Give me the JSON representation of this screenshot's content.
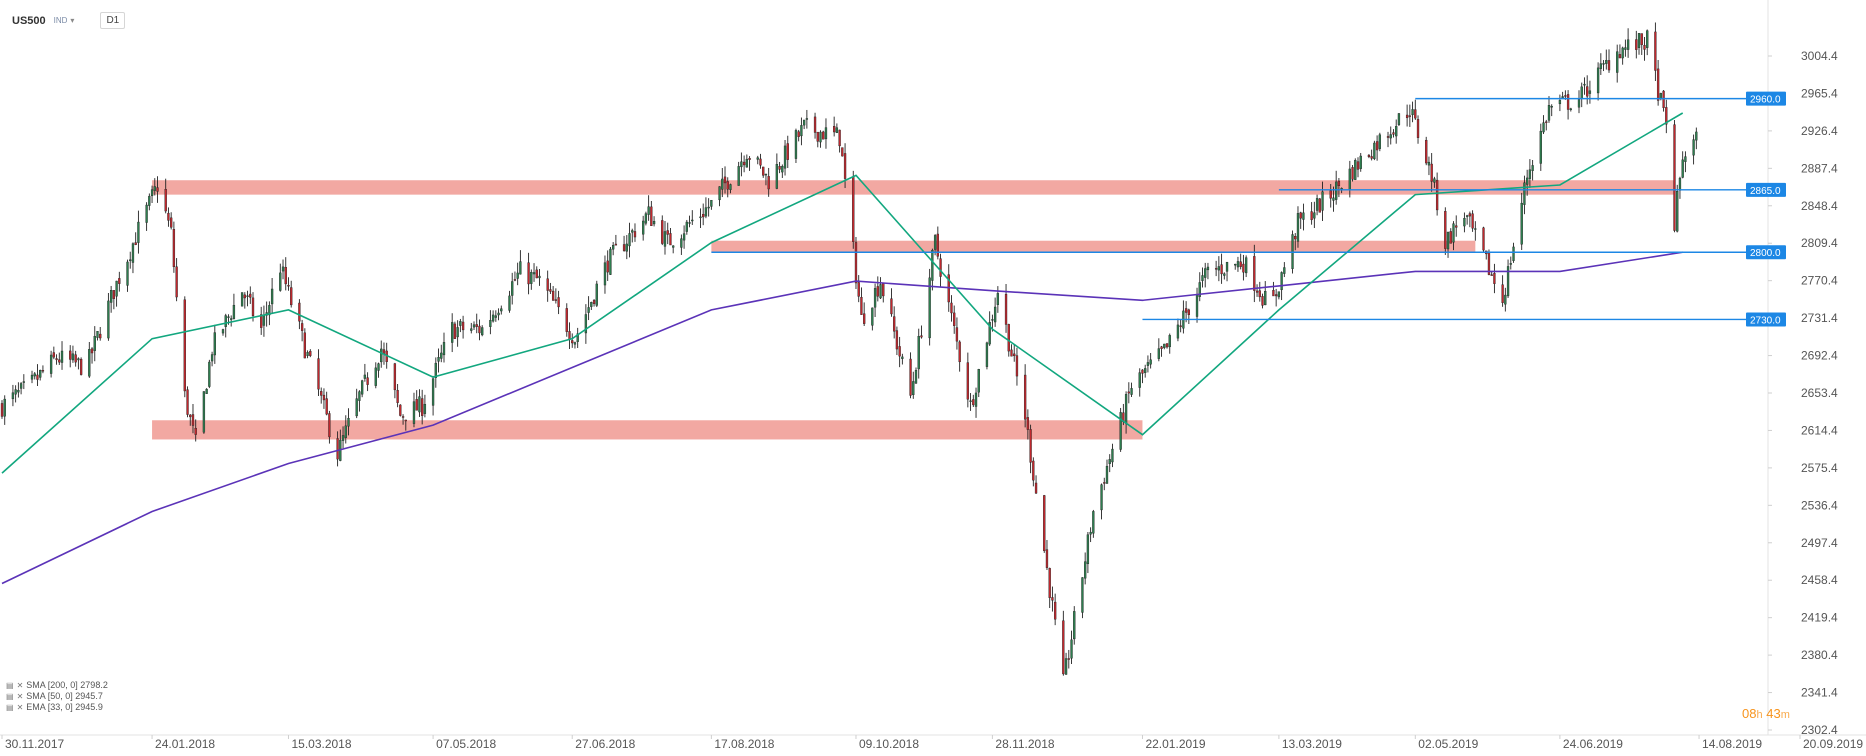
{
  "header": {
    "symbol": "US500",
    "badge": "IND",
    "timeframe": "D1"
  },
  "legend": [
    {
      "text": "SMA [200,  0] 2798.2",
      "color": "#5b33b8"
    },
    {
      "text": "SMA [50,  0] 2945.7",
      "color": "#12a77f"
    },
    {
      "text": "EMA [33, 0] 2945.9",
      "color": "#9b9b9b"
    }
  ],
  "timer": {
    "hours": "08",
    "hours_unit": "h",
    "minutes": "43",
    "minutes_unit": "m"
  },
  "chart_data": {
    "type": "candlestick",
    "symbol": "US500",
    "timeframe": "D1",
    "x_ticks": [
      "30.11.2017",
      "24.01.2018",
      "15.03.2018",
      "07.05.2018",
      "27.06.2018",
      "17.08.2018",
      "09.10.2018",
      "28.11.2018",
      "22.01.2019",
      "13.03.2019",
      "02.05.2019",
      "24.06.2019",
      "14.08.2019",
      "20.09.2019"
    ],
    "y_ticks": [
      3004.4,
      2965.4,
      2926.4,
      2887.4,
      2848.4,
      2809.4,
      2770.4,
      2731.4,
      2692.4,
      2653.4,
      2614.4,
      2575.4,
      2536.4,
      2497.4,
      2458.4,
      2419.4,
      2380.4,
      2341.4,
      2302.4
    ],
    "ylim": [
      2302.4,
      3022
    ],
    "price_levels": [
      {
        "label": "2960.0",
        "value": 2960.0,
        "from": "02.05.2019"
      },
      {
        "label": "2865.0",
        "value": 2865.0,
        "from": "13.03.2019"
      },
      {
        "label": "2800.0",
        "value": 2800.0,
        "from": "17.08.2018"
      },
      {
        "label": "2730.0",
        "value": 2730.0,
        "from": "22.01.2019"
      }
    ],
    "zones": [
      {
        "from": "24.01.2018",
        "to": "05.08.2019",
        "low": 2860,
        "high": 2875
      },
      {
        "from": "17.08.2018",
        "to": "24.05.2019",
        "low": 2800,
        "high": 2812
      },
      {
        "from": "24.01.2018",
        "to": "22.01.2019",
        "low": 2605,
        "high": 2625
      }
    ],
    "price_path": [
      [
        "30.11.2017",
        2640
      ],
      [
        "10.12.2017",
        2660
      ],
      [
        "20.12.2017",
        2690
      ],
      [
        "31.12.2017",
        2680
      ],
      [
        "10.01.2018",
        2760
      ],
      [
        "20.01.2018",
        2830
      ],
      [
        "26.01.2018",
        2870
      ],
      [
        "31.01.2018",
        2820
      ],
      [
        "05.02.2018",
        2650
      ],
      [
        "09.02.2018",
        2600
      ],
      [
        "15.02.2018",
        2700
      ],
      [
        "26.02.2018",
        2760
      ],
      [
        "05.03.2018",
        2720
      ],
      [
        "12.03.2018",
        2785
      ],
      [
        "20.03.2018",
        2710
      ],
      [
        "02.04.2018",
        2590
      ],
      [
        "10.04.2018",
        2650
      ],
      [
        "18.04.2018",
        2700
      ],
      [
        "25.04.2018",
        2630
      ],
      [
        "03.05.2018",
        2640
      ],
      [
        "14.05.2018",
        2720
      ],
      [
        "25.05.2018",
        2720
      ],
      [
        "08.06.2018",
        2780
      ],
      [
        "15.06.2018",
        2770
      ],
      [
        "28.06.2018",
        2710
      ],
      [
        "10.07.2018",
        2790
      ],
      [
        "25.07.2018",
        2840
      ],
      [
        "01.08.2018",
        2810
      ],
      [
        "17.08.2018",
        2850
      ],
      [
        "30.08.2018",
        2905
      ],
      [
        "07.09.2018",
        2875
      ],
      [
        "20.09.2018",
        2930
      ],
      [
        "03.10.2018",
        2920
      ],
      [
        "11.10.2018",
        2730
      ],
      [
        "18.10.2018",
        2770
      ],
      [
        "29.10.2018",
        2650
      ],
      [
        "07.11.2018",
        2810
      ],
      [
        "20.11.2018",
        2640
      ],
      [
        "30.11.2018",
        2760
      ],
      [
        "10.12.2018",
        2630
      ],
      [
        "24.12.2018",
        2350
      ],
      [
        "04.01.2019",
        2530
      ],
      [
        "18.01.2019",
        2660
      ],
      [
        "31.01.2019",
        2700
      ],
      [
        "15.02.2019",
        2780
      ],
      [
        "28.02.2019",
        2790
      ],
      [
        "10.03.2019",
        2740
      ],
      [
        "20.03.2019",
        2830
      ],
      [
        "01.04.2019",
        2860
      ],
      [
        "15.04.2019",
        2905
      ],
      [
        "30.04.2019",
        2950
      ],
      [
        "08.05.2019",
        2880
      ],
      [
        "13.05.2019",
        2810
      ],
      [
        "20.05.2019",
        2840
      ],
      [
        "03.06.2019",
        2750
      ],
      [
        "12.06.2019",
        2880
      ],
      [
        "20.06.2019",
        2950
      ],
      [
        "01.07.2019",
        2960
      ],
      [
        "15.07.2019",
        3010
      ],
      [
        "26.07.2019",
        3020
      ],
      [
        "02.08.2019",
        2930
      ],
      [
        "05.08.2019",
        2830
      ],
      [
        "08.08.2019",
        2900
      ],
      [
        "14.08.2019",
        2920
      ]
    ],
    "series": [
      {
        "name": "SMA [200,  0]",
        "last": 2798.2,
        "color": "#5b33b8",
        "points": [
          [
            "30.11.2017",
            2455
          ],
          [
            "24.01.2018",
            2530
          ],
          [
            "15.03.2018",
            2580
          ],
          [
            "07.05.2018",
            2620
          ],
          [
            "27.06.2018",
            2680
          ],
          [
            "17.08.2018",
            2740
          ],
          [
            "09.10.2018",
            2770
          ],
          [
            "28.11.2018",
            2760
          ],
          [
            "22.01.2019",
            2750
          ],
          [
            "13.03.2019",
            2765
          ],
          [
            "02.05.2019",
            2780
          ],
          [
            "24.06.2019",
            2780
          ],
          [
            "08.08.2019",
            2800
          ]
        ]
      },
      {
        "name": "SMA [50,  0]",
        "last": 2945.7,
        "color": "#12a77f",
        "points": [
          [
            "30.11.2017",
            2570
          ],
          [
            "24.01.2018",
            2710
          ],
          [
            "15.03.2018",
            2740
          ],
          [
            "07.05.2018",
            2670
          ],
          [
            "27.06.2018",
            2710
          ],
          [
            "17.08.2018",
            2810
          ],
          [
            "09.10.2018",
            2880
          ],
          [
            "28.11.2018",
            2720
          ],
          [
            "22.01.2019",
            2610
          ],
          [
            "13.03.2019",
            2740
          ],
          [
            "02.05.2019",
            2860
          ],
          [
            "24.06.2019",
            2870
          ],
          [
            "08.08.2019",
            2945
          ]
        ]
      },
      {
        "name": "EMA [33, 0]",
        "last": 2945.9,
        "color": "#9b9b9b"
      }
    ]
  }
}
